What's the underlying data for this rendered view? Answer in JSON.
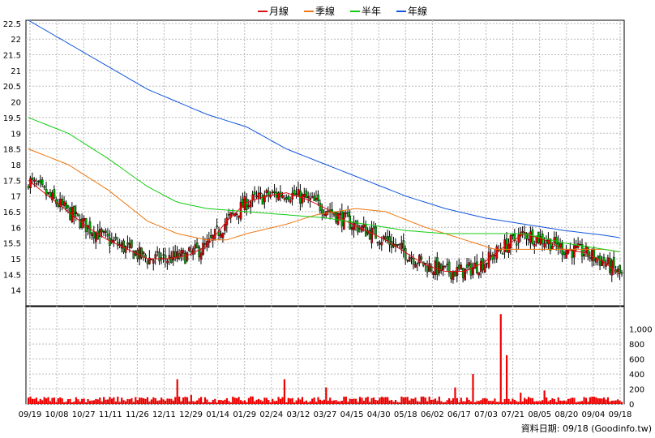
{
  "legend": [
    {
      "label": "月線",
      "color": "#dd1111"
    },
    {
      "label": "季線",
      "color": "#ee7711"
    },
    {
      "label": "半年",
      "color": "#11cc11"
    },
    {
      "label": "年線",
      "color": "#1155dd"
    }
  ],
  "source_note": "資料日期: 09/18 (Goodinfo.tw)",
  "chart_data": {
    "type": "candlestick",
    "price_axis": {
      "min": 13.5,
      "max": 22.6,
      "ticks": [
        14,
        14.5,
        15,
        15.5,
        16,
        16.5,
        17,
        17.5,
        18,
        18.5,
        19,
        19.5,
        20,
        20.5,
        21,
        21.5,
        22,
        22.5
      ]
    },
    "price_tick_labels": [
      "14",
      "14.5",
      "15",
      "15.5",
      "16",
      "16.5",
      "17",
      "17.5",
      "18",
      "18.5",
      "19",
      "19.5",
      "20",
      "20.5",
      "21",
      "21.5",
      "22",
      "22.5"
    ],
    "volume_axis": {
      "min": 0,
      "max": 1300,
      "ticks": [
        0,
        200,
        400,
        600,
        800,
        1000
      ]
    },
    "volume_tick_labels": [
      "0",
      "200",
      "400",
      "600",
      "800",
      "1,000"
    ],
    "date_labels": [
      "09/19",
      "10/08",
      "10/27",
      "11/11",
      "11/26",
      "12/11",
      "12/29",
      "01/14",
      "01/29",
      "02/24",
      "03/12",
      "03/27",
      "04/15",
      "04/30",
      "05/18",
      "06/02",
      "06/17",
      "07/03",
      "07/21",
      "08/05",
      "08/20",
      "09/04",
      "09/18"
    ],
    "ma": {
      "month": [
        [
          0,
          17.5
        ],
        [
          10,
          17.0
        ],
        [
          20,
          16.5
        ],
        [
          30,
          16.0
        ],
        [
          40,
          15.6
        ],
        [
          50,
          15.3
        ],
        [
          60,
          15.0
        ],
        [
          70,
          15.0
        ],
        [
          80,
          15.1
        ],
        [
          90,
          15.4
        ],
        [
          100,
          16.2
        ],
        [
          110,
          16.8
        ],
        [
          120,
          17.0
        ],
        [
          130,
          17.1
        ],
        [
          140,
          16.9
        ],
        [
          150,
          16.6
        ],
        [
          160,
          16.2
        ],
        [
          170,
          15.9
        ],
        [
          180,
          15.6
        ],
        [
          190,
          15.2
        ],
        [
          200,
          14.8
        ],
        [
          210,
          14.6
        ],
        [
          220,
          14.6
        ],
        [
          230,
          14.9
        ],
        [
          240,
          15.4
        ],
        [
          250,
          15.8
        ],
        [
          260,
          15.6
        ],
        [
          270,
          15.3
        ],
        [
          280,
          15.2
        ],
        [
          290,
          14.9
        ],
        [
          300,
          14.4
        ]
      ],
      "quarter": [
        [
          0,
          18.5
        ],
        [
          20,
          18.0
        ],
        [
          40,
          17.2
        ],
        [
          60,
          16.2
        ],
        [
          75,
          15.8
        ],
        [
          90,
          15.6
        ],
        [
          100,
          15.6
        ],
        [
          110,
          15.8
        ],
        [
          130,
          16.1
        ],
        [
          145,
          16.4
        ],
        [
          165,
          16.6
        ],
        [
          180,
          16.5
        ],
        [
          200,
          16.0
        ],
        [
          220,
          15.6
        ],
        [
          235,
          15.3
        ],
        [
          250,
          15.3
        ],
        [
          270,
          15.3
        ],
        [
          290,
          15.3
        ],
        [
          300,
          15.2
        ]
      ],
      "half": [
        [
          0,
          19.5
        ],
        [
          20,
          19.0
        ],
        [
          40,
          18.2
        ],
        [
          60,
          17.3
        ],
        [
          75,
          16.8
        ],
        [
          90,
          16.6
        ],
        [
          110,
          16.5
        ],
        [
          130,
          16.4
        ],
        [
          150,
          16.3
        ],
        [
          170,
          16.1
        ],
        [
          190,
          15.9
        ],
        [
          210,
          15.8
        ],
        [
          230,
          15.8
        ],
        [
          250,
          15.8
        ],
        [
          270,
          15.5
        ],
        [
          290,
          15.3
        ],
        [
          300,
          15.2
        ]
      ],
      "year": [
        [
          0,
          22.6
        ],
        [
          30,
          21.5
        ],
        [
          60,
          20.4
        ],
        [
          90,
          19.6
        ],
        [
          110,
          19.2
        ],
        [
          130,
          18.5
        ],
        [
          150,
          18.0
        ],
        [
          170,
          17.5
        ],
        [
          190,
          17.0
        ],
        [
          210,
          16.6
        ],
        [
          230,
          16.3
        ],
        [
          250,
          16.1
        ],
        [
          270,
          15.9
        ],
        [
          290,
          15.75
        ],
        [
          300,
          15.65
        ]
      ]
    },
    "volume_spikes": [
      [
        75,
        330
      ],
      [
        82,
        120
      ],
      [
        129,
        330
      ],
      [
        150,
        220
      ],
      [
        215,
        220
      ],
      [
        224,
        400
      ],
      [
        238,
        1200
      ],
      [
        241,
        650
      ],
      [
        248,
        150
      ],
      [
        260,
        180
      ]
    ]
  }
}
